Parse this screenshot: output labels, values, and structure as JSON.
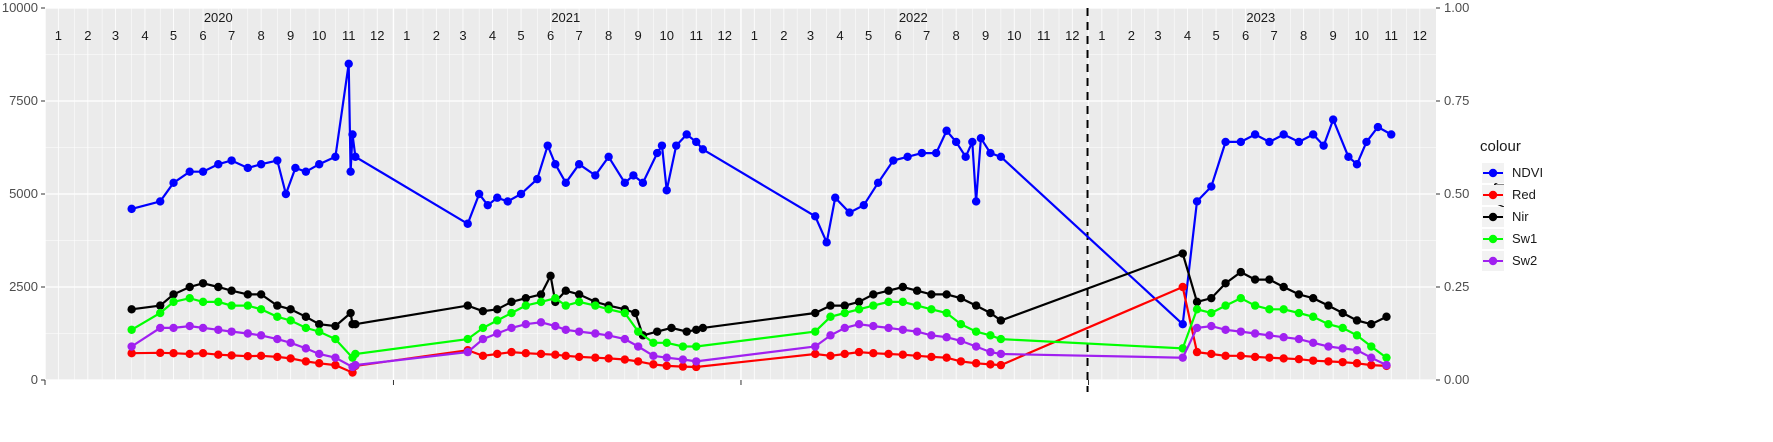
{
  "chart_data": {
    "type": "line",
    "title": "",
    "xlabel": "",
    "ylabel": "",
    "ylabel_right": "NDVI",
    "ylim": [
      0,
      10000
    ],
    "ylim_right": [
      0,
      1
    ],
    "yticks": [
      "0",
      "2500",
      "5000",
      "7500",
      "10000"
    ],
    "yticks_right": [
      "0.00",
      "0.25",
      "0.50",
      "0.75",
      "1.00"
    ],
    "grid": true,
    "facet_years": [
      "2020",
      "2021",
      "2022",
      "2023"
    ],
    "month_labels": [
      "1",
      "2",
      "3",
      "4",
      "5",
      "6",
      "7",
      "8",
      "9",
      "10",
      "11",
      "12"
    ],
    "vline_x": "2022-12-31",
    "legend": {
      "title": "colour",
      "position": "right",
      "entries": [
        "NDVI",
        "Red",
        "Nir",
        "Sw1",
        "Sw2"
      ]
    },
    "series": [
      {
        "name": "NDVI",
        "color": "#0000ff",
        "axis": "right",
        "x": [
          "2020-04-01",
          "2020-05-01",
          "2020-05-15",
          "2020-06-01",
          "2020-06-15",
          "2020-07-01",
          "2020-07-15",
          "2020-08-01",
          "2020-08-15",
          "2020-09-01",
          "2020-09-10",
          "2020-09-20",
          "2020-10-01",
          "2020-10-15",
          "2020-11-01",
          "2020-11-15",
          "2020-11-17",
          "2020-11-19",
          "2020-11-22",
          "2021-03-20",
          "2021-04-01",
          "2021-04-10",
          "2021-04-20",
          "2021-05-01",
          "2021-05-15",
          "2021-06-01",
          "2021-06-12",
          "2021-06-20",
          "2021-07-01",
          "2021-07-15",
          "2021-08-01",
          "2021-08-15",
          "2021-09-01",
          "2021-09-10",
          "2021-09-20",
          "2021-10-05",
          "2021-10-10",
          "2021-10-15",
          "2021-10-25",
          "2021-11-05",
          "2021-11-15",
          "2021-11-22",
          "2022-03-20",
          "2022-04-01",
          "2022-04-10",
          "2022-04-25",
          "2022-05-10",
          "2022-05-25",
          "2022-06-10",
          "2022-06-25",
          "2022-07-10",
          "2022-07-25",
          "2022-08-05",
          "2022-08-15",
          "2022-08-25",
          "2022-09-01",
          "2022-09-05",
          "2022-09-10",
          "2022-09-20",
          "2022-10-01",
          "2023-04-10",
          "2023-04-25",
          "2023-05-10",
          "2023-05-25",
          "2023-06-10",
          "2023-06-25",
          "2023-07-10",
          "2023-07-25",
          "2023-08-10",
          "2023-08-25",
          "2023-09-05",
          "2023-09-15",
          "2023-10-01",
          "2023-10-10",
          "2023-10-20",
          "2023-11-01",
          "2023-11-15"
        ],
        "values": [
          0.46,
          0.48,
          0.53,
          0.56,
          0.56,
          0.58,
          0.59,
          0.57,
          0.58,
          0.59,
          0.5,
          0.57,
          0.56,
          0.58,
          0.6,
          0.85,
          0.56,
          0.66,
          0.6,
          0.42,
          0.5,
          0.47,
          0.49,
          0.48,
          0.5,
          0.54,
          0.63,
          0.58,
          0.53,
          0.58,
          0.55,
          0.6,
          0.53,
          0.55,
          0.53,
          0.61,
          0.63,
          0.51,
          0.63,
          0.66,
          0.64,
          0.62,
          0.44,
          0.37,
          0.49,
          0.45,
          0.47,
          0.53,
          0.59,
          0.6,
          0.61,
          0.61,
          0.67,
          0.64,
          0.6,
          0.64,
          0.48,
          0.65,
          0.61,
          0.6,
          0.15,
          0.48,
          0.52,
          0.64,
          0.64,
          0.66,
          0.64,
          0.66,
          0.64,
          0.66,
          0.63,
          0.7,
          0.6,
          0.58,
          0.64,
          0.68,
          0.66
        ]
      },
      {
        "name": "Red",
        "color": "#ff0000",
        "axis": "left",
        "x": [
          "2020-04-01",
          "2020-05-01",
          "2020-05-15",
          "2020-06-01",
          "2020-06-15",
          "2020-07-01",
          "2020-07-15",
          "2020-08-01",
          "2020-08-15",
          "2020-09-01",
          "2020-09-15",
          "2020-10-01",
          "2020-10-15",
          "2020-11-01",
          "2020-11-19",
          "2020-11-22",
          "2021-03-20",
          "2021-04-05",
          "2021-04-20",
          "2021-05-05",
          "2021-05-20",
          "2021-06-05",
          "2021-06-20",
          "2021-07-01",
          "2021-07-15",
          "2021-08-01",
          "2021-08-15",
          "2021-09-01",
          "2021-09-15",
          "2021-10-01",
          "2021-10-15",
          "2021-11-01",
          "2021-11-15",
          "2022-03-20",
          "2022-04-05",
          "2022-04-20",
          "2022-05-05",
          "2022-05-20",
          "2022-06-05",
          "2022-06-20",
          "2022-07-05",
          "2022-07-20",
          "2022-08-05",
          "2022-08-20",
          "2022-09-05",
          "2022-09-20",
          "2022-10-01",
          "2023-04-10",
          "2023-04-25",
          "2023-05-10",
          "2023-05-25",
          "2023-06-10",
          "2023-06-25",
          "2023-07-10",
          "2023-07-25",
          "2023-08-10",
          "2023-08-25",
          "2023-09-10",
          "2023-09-25",
          "2023-10-10",
          "2023-10-25",
          "2023-11-10"
        ],
        "values": [
          720,
          730,
          720,
          700,
          720,
          680,
          660,
          640,
          650,
          620,
          580,
          500,
          450,
          400,
          200,
          380,
          800,
          650,
          700,
          750,
          720,
          700,
          680,
          650,
          620,
          600,
          580,
          550,
          500,
          420,
          380,
          360,
          350,
          700,
          650,
          700,
          750,
          720,
          700,
          680,
          650,
          620,
          600,
          500,
          450,
          420,
          400,
          2500,
          750,
          700,
          650,
          650,
          620,
          600,
          580,
          560,
          520,
          500,
          480,
          450,
          400,
          380
        ]
      },
      {
        "name": "Nir",
        "color": "#000000",
        "axis": "left",
        "x": [
          "2020-04-01",
          "2020-05-01",
          "2020-05-15",
          "2020-06-01",
          "2020-06-15",
          "2020-07-01",
          "2020-07-15",
          "2020-08-01",
          "2020-08-15",
          "2020-09-01",
          "2020-09-15",
          "2020-10-01",
          "2020-10-15",
          "2020-11-01",
          "2020-11-17",
          "2020-11-19",
          "2020-11-22",
          "2021-03-20",
          "2021-04-05",
          "2021-04-20",
          "2021-05-05",
          "2021-05-20",
          "2021-06-05",
          "2021-06-15",
          "2021-06-20",
          "2021-07-01",
          "2021-07-15",
          "2021-08-01",
          "2021-08-15",
          "2021-09-01",
          "2021-09-12",
          "2021-09-20",
          "2021-10-05",
          "2021-10-20",
          "2021-11-05",
          "2021-11-15",
          "2021-11-22",
          "2022-03-20",
          "2022-04-05",
          "2022-04-20",
          "2022-05-05",
          "2022-05-20",
          "2022-06-05",
          "2022-06-20",
          "2022-07-05",
          "2022-07-20",
          "2022-08-05",
          "2022-08-20",
          "2022-09-05",
          "2022-09-20",
          "2022-10-01",
          "2023-04-10",
          "2023-04-25",
          "2023-05-10",
          "2023-05-25",
          "2023-06-10",
          "2023-06-25",
          "2023-07-10",
          "2023-07-25",
          "2023-08-10",
          "2023-08-25",
          "2023-09-10",
          "2023-09-25",
          "2023-10-10",
          "2023-10-25",
          "2023-11-10"
        ],
        "values": [
          1900,
          2000,
          2300,
          2500,
          2600,
          2500,
          2400,
          2300,
          2300,
          2000,
          1900,
          1700,
          1500,
          1450,
          1800,
          1500,
          1500,
          2000,
          1850,
          1900,
          2100,
          2200,
          2300,
          2800,
          2100,
          2400,
          2300,
          2100,
          2000,
          1900,
          1800,
          1200,
          1300,
          1400,
          1300,
          1350,
          1400,
          1800,
          2000,
          2000,
          2100,
          2300,
          2400,
          2500,
          2400,
          2300,
          2300,
          2200,
          2000,
          1800,
          1600,
          3400,
          2100,
          2200,
          2600,
          2900,
          2700,
          2700,
          2500,
          2300,
          2200,
          2000,
          1800,
          1600,
          1500,
          1700
        ]
      },
      {
        "name": "Sw1",
        "color": "#00ff00",
        "axis": "left",
        "x": [
          "2020-04-01",
          "2020-05-01",
          "2020-05-15",
          "2020-06-01",
          "2020-06-15",
          "2020-07-01",
          "2020-07-15",
          "2020-08-01",
          "2020-08-15",
          "2020-09-01",
          "2020-09-15",
          "2020-10-01",
          "2020-10-15",
          "2020-11-01",
          "2020-11-19",
          "2020-11-22",
          "2021-03-20",
          "2021-04-05",
          "2021-04-20",
          "2021-05-05",
          "2021-05-20",
          "2021-06-05",
          "2021-06-20",
          "2021-07-01",
          "2021-07-15",
          "2021-08-01",
          "2021-08-15",
          "2021-09-01",
          "2021-09-15",
          "2021-10-01",
          "2021-10-15",
          "2021-11-01",
          "2021-11-15",
          "2022-03-20",
          "2022-04-05",
          "2022-04-20",
          "2022-05-05",
          "2022-05-20",
          "2022-06-05",
          "2022-06-20",
          "2022-07-05",
          "2022-07-20",
          "2022-08-05",
          "2022-08-20",
          "2022-09-05",
          "2022-09-20",
          "2022-10-01",
          "2023-04-10",
          "2023-04-25",
          "2023-05-10",
          "2023-05-25",
          "2023-06-10",
          "2023-06-25",
          "2023-07-10",
          "2023-07-25",
          "2023-08-10",
          "2023-08-25",
          "2023-09-10",
          "2023-09-25",
          "2023-10-10",
          "2023-10-25",
          "2023-11-10"
        ],
        "values": [
          1350,
          1800,
          2100,
          2200,
          2100,
          2100,
          2000,
          2000,
          1900,
          1700,
          1600,
          1400,
          1300,
          1100,
          600,
          700,
          1100,
          1400,
          1600,
          1800,
          2000,
          2100,
          2200,
          2000,
          2100,
          2000,
          1900,
          1800,
          1300,
          1000,
          1000,
          900,
          900,
          1300,
          1700,
          1800,
          1900,
          2000,
          2100,
          2100,
          2000,
          1900,
          1800,
          1500,
          1300,
          1200,
          1100,
          850,
          1900,
          1800,
          2000,
          2200,
          2000,
          1900,
          1900,
          1800,
          1700,
          1500,
          1400,
          1200,
          900,
          600
        ]
      },
      {
        "name": "Sw2",
        "color": "#a020f0",
        "axis": "left",
        "x": [
          "2020-04-01",
          "2020-05-01",
          "2020-05-15",
          "2020-06-01",
          "2020-06-15",
          "2020-07-01",
          "2020-07-15",
          "2020-08-01",
          "2020-08-15",
          "2020-09-01",
          "2020-09-15",
          "2020-10-01",
          "2020-10-15",
          "2020-11-01",
          "2020-11-19",
          "2020-11-22",
          "2021-03-20",
          "2021-04-05",
          "2021-04-20",
          "2021-05-05",
          "2021-05-20",
          "2021-06-05",
          "2021-06-20",
          "2021-07-01",
          "2021-07-15",
          "2021-08-01",
          "2021-08-15",
          "2021-09-01",
          "2021-09-15",
          "2021-10-01",
          "2021-10-15",
          "2021-11-01",
          "2021-11-15",
          "2022-03-20",
          "2022-04-05",
          "2022-04-20",
          "2022-05-05",
          "2022-05-20",
          "2022-06-05",
          "2022-06-20",
          "2022-07-05",
          "2022-07-20",
          "2022-08-05",
          "2022-08-20",
          "2022-09-05",
          "2022-09-20",
          "2022-10-01",
          "2023-04-10",
          "2023-04-25",
          "2023-05-10",
          "2023-05-25",
          "2023-06-10",
          "2023-06-25",
          "2023-07-10",
          "2023-07-25",
          "2023-08-10",
          "2023-08-25",
          "2023-09-10",
          "2023-09-25",
          "2023-10-10",
          "2023-10-25",
          "2023-11-10"
        ],
        "values": [
          900,
          1400,
          1400,
          1450,
          1400,
          1350,
          1300,
          1250,
          1200,
          1100,
          1000,
          850,
          700,
          600,
          350,
          400,
          750,
          1100,
          1250,
          1400,
          1500,
          1550,
          1450,
          1350,
          1300,
          1250,
          1200,
          1100,
          900,
          650,
          600,
          550,
          500,
          900,
          1200,
          1400,
          1500,
          1450,
          1400,
          1350,
          1300,
          1200,
          1150,
          1050,
          900,
          750,
          700,
          600,
          1400,
          1450,
          1350,
          1300,
          1250,
          1200,
          1150,
          1100,
          1000,
          900,
          850,
          800,
          600,
          400
        ]
      }
    ]
  }
}
